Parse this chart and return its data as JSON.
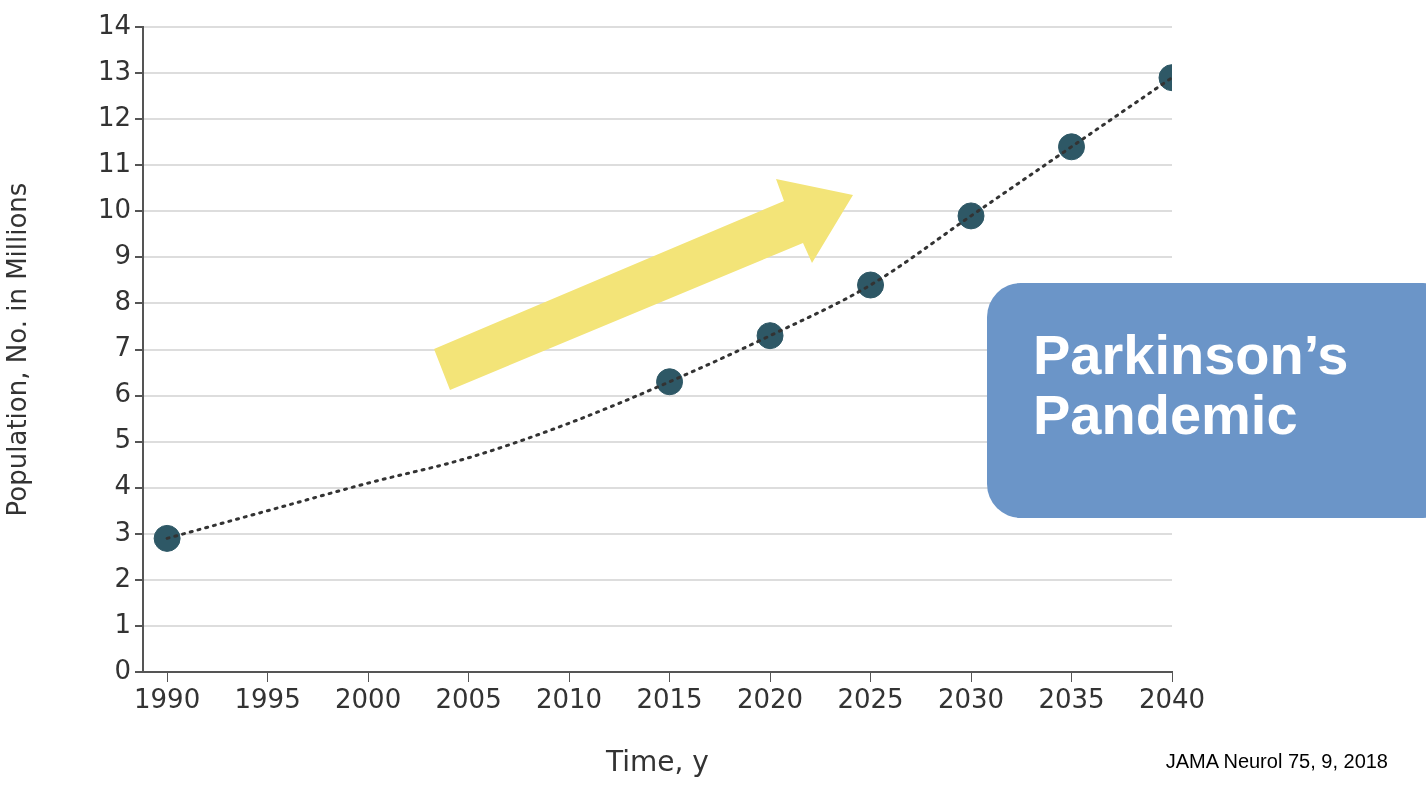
{
  "chart_data": {
    "type": "scatter",
    "xlabel": "Time, y",
    "ylabel": "Population, No. in Millions",
    "xlim": [
      1988.8,
      2040
    ],
    "xticks": [
      1990,
      1995,
      2000,
      2005,
      2010,
      2015,
      2020,
      2025,
      2030,
      2035,
      2040
    ],
    "ylim": [
      0,
      14
    ],
    "yticks": [
      0,
      1,
      2,
      3,
      4,
      5,
      6,
      7,
      8,
      9,
      10,
      11,
      12,
      13,
      14
    ],
    "grid": "y",
    "legend": false,
    "series": [
      {
        "type": "line",
        "x": [
          1990,
          1995,
          2000,
          2005,
          2010,
          2015,
          2020,
          2025,
          2030,
          2035,
          2040
        ],
        "values": [
          2.9,
          3.5,
          4.1,
          4.65,
          5.4,
          6.3,
          7.3,
          8.4,
          9.9,
          11.4,
          12.9
        ],
        "color": "#333333",
        "line_style": "dotted",
        "marker": "none"
      },
      {
        "type": "scatter",
        "x": [
          1990,
          2015,
          2020,
          2025,
          2030,
          2035,
          2040
        ],
        "values": [
          2.9,
          6.3,
          7.3,
          8.4,
          9.9,
          11.4,
          12.9
        ],
        "color": "#2e5866",
        "marker": "circle"
      }
    ],
    "annotations": [
      "Parkinson’s Pandemic",
      "JAMA Neurol 75, 9, 2018"
    ]
  }
}
